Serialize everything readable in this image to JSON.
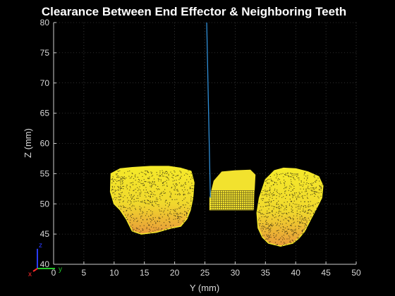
{
  "chart_data": {
    "type": "scatter",
    "title": "Clearance Between End Effector & Neighboring Teeth",
    "xlabel": "Y (mm)",
    "ylabel": "Z (mm)",
    "xlim": [
      0,
      50
    ],
    "ylim": [
      40,
      80
    ],
    "xticks": [
      0,
      5,
      10,
      15,
      20,
      25,
      30,
      35,
      40,
      45,
      50
    ],
    "yticks": [
      40,
      45,
      50,
      55,
      60,
      65,
      70,
      75,
      80
    ],
    "grid": true,
    "background": "#000000",
    "objects": [
      {
        "kind": "point-cloud",
        "color_top": "#f5ea2a",
        "color_bottom": "#e89a3a",
        "outline": [
          [
            9.5,
            55.0
          ],
          [
            11,
            55.8
          ],
          [
            13,
            56.0
          ],
          [
            16,
            56.2
          ],
          [
            19,
            56.2
          ],
          [
            21,
            55.9
          ],
          [
            22.7,
            55.4
          ],
          [
            23.2,
            53.5
          ],
          [
            23.0,
            51.0
          ],
          [
            22.6,
            49.0
          ],
          [
            22.0,
            47.5
          ],
          [
            21.0,
            46.3
          ],
          [
            19.5,
            46.0
          ],
          [
            17,
            45.3
          ],
          [
            14.5,
            45.0
          ],
          [
            13,
            45.5
          ],
          [
            12,
            47.5
          ],
          [
            11,
            49.0
          ],
          [
            10,
            50.0
          ],
          [
            9.4,
            52.0
          ]
        ]
      },
      {
        "kind": "point-cloud",
        "color_top": "#f5ea2a",
        "color_bottom": "#e89a3a",
        "outline": [
          [
            35.0,
            54.0
          ],
          [
            36.5,
            55.5
          ],
          [
            38,
            55.9
          ],
          [
            40,
            55.8
          ],
          [
            42,
            55.3
          ],
          [
            43.8,
            54.5
          ],
          [
            44.5,
            53.0
          ],
          [
            44.3,
            51.0
          ],
          [
            43.3,
            49.0
          ],
          [
            42.5,
            47.5
          ],
          [
            41.5,
            45.5
          ],
          [
            40.5,
            44.3
          ],
          [
            39.5,
            43.5
          ],
          [
            37.5,
            43.0
          ],
          [
            35.5,
            43.5
          ],
          [
            34.5,
            44.5
          ],
          [
            33.8,
            46.0
          ],
          [
            33.6,
            48.5
          ],
          [
            34.0,
            51.0
          ],
          [
            34.5,
            52.5
          ]
        ]
      },
      {
        "kind": "end-effector",
        "color": "#f2e22e",
        "outline": [
          [
            26.5,
            53.8
          ],
          [
            27.8,
            55.3
          ],
          [
            30,
            55.5
          ],
          [
            32.5,
            55.6
          ],
          [
            33.3,
            54.8
          ],
          [
            33.0,
            49.0
          ],
          [
            25.8,
            49.0
          ],
          [
            25.8,
            51.0
          ]
        ]
      },
      {
        "kind": "line",
        "color": "#2f8fd8",
        "points": [
          [
            25.3,
            80.0
          ],
          [
            25.9,
            51.0
          ]
        ]
      }
    ]
  },
  "triad": {
    "z_label": "z",
    "y_label": "y",
    "x_label": "x",
    "z_color": "#2a3cff",
    "y_color": "#24c82a",
    "x_color": "#ff2a2a"
  }
}
